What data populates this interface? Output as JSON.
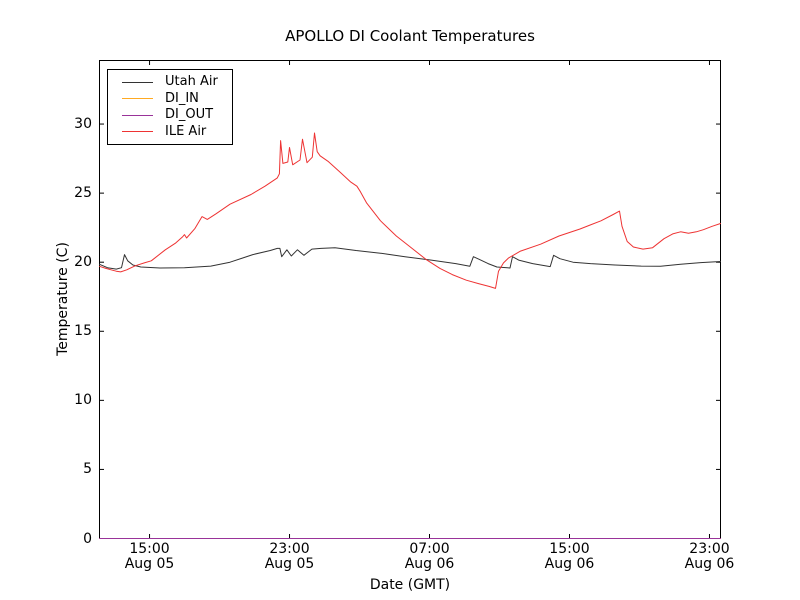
{
  "chart_data": {
    "type": "line",
    "title": "APOLLO DI Coolant Temperatures",
    "xlabel": "Date (GMT)",
    "ylabel": "Temperature (C)",
    "grid": false,
    "legend_position": "upper left",
    "frame_color": "#000000",
    "background_color": "#ffffff",
    "x_unit": "hours since Aug 05 00:00 GMT",
    "xlim": [
      12.14,
      47.63
    ],
    "ylim": [
      0,
      34.6
    ],
    "y_ticks": [
      0,
      5,
      10,
      15,
      20,
      25,
      30
    ],
    "x_ticks": [
      {
        "t": 15,
        "time": "15:00",
        "date": "Aug 05"
      },
      {
        "t": 23,
        "time": "23:00",
        "date": "Aug 05"
      },
      {
        "t": 31,
        "time": "07:00",
        "date": "Aug 06"
      },
      {
        "t": 39,
        "time": "15:00",
        "date": "Aug 06"
      },
      {
        "t": 47,
        "time": "23:00",
        "date": "Aug 06"
      }
    ],
    "series": [
      {
        "name": "Utah Air",
        "color": "#333333",
        "points": [
          [
            12.14,
            19.85
          ],
          [
            12.6,
            19.6
          ],
          [
            13.1,
            19.5
          ],
          [
            13.4,
            19.6
          ],
          [
            13.57,
            20.55
          ],
          [
            13.75,
            20.1
          ],
          [
            14.05,
            19.8
          ],
          [
            14.5,
            19.65
          ],
          [
            15.6,
            19.58
          ],
          [
            17.0,
            19.6
          ],
          [
            18.5,
            19.72
          ],
          [
            19.6,
            20.0
          ],
          [
            20.3,
            20.3
          ],
          [
            20.9,
            20.55
          ],
          [
            21.9,
            20.85
          ],
          [
            22.3,
            21.0
          ],
          [
            22.45,
            21.0
          ],
          [
            22.55,
            20.4
          ],
          [
            22.85,
            20.9
          ],
          [
            23.1,
            20.45
          ],
          [
            23.45,
            20.9
          ],
          [
            23.82,
            20.5
          ],
          [
            24.28,
            20.95
          ],
          [
            24.8,
            21.0
          ],
          [
            25.6,
            21.05
          ],
          [
            26.8,
            20.85
          ],
          [
            28.2,
            20.65
          ],
          [
            29.6,
            20.4
          ],
          [
            31.1,
            20.15
          ],
          [
            32.5,
            19.9
          ],
          [
            33.3,
            19.7
          ],
          [
            33.51,
            20.4
          ],
          [
            33.85,
            20.2
          ],
          [
            34.35,
            19.9
          ],
          [
            34.85,
            19.65
          ],
          [
            35.6,
            19.58
          ],
          [
            35.74,
            20.4
          ],
          [
            36.1,
            20.15
          ],
          [
            36.9,
            19.9
          ],
          [
            37.9,
            19.68
          ],
          [
            38.09,
            20.5
          ],
          [
            38.45,
            20.25
          ],
          [
            39.2,
            20.0
          ],
          [
            40.2,
            19.9
          ],
          [
            41.6,
            19.8
          ],
          [
            43.1,
            19.72
          ],
          [
            44.2,
            19.7
          ],
          [
            45.35,
            19.85
          ],
          [
            46.5,
            19.97
          ],
          [
            47.63,
            20.05
          ]
        ]
      },
      {
        "name": "DI_IN",
        "color": "#ffaa22",
        "points": [
          [
            12.14,
            0
          ],
          [
            47.63,
            0
          ]
        ]
      },
      {
        "name": "DI_OUT",
        "color": "#993399",
        "points": [
          [
            12.14,
            0
          ],
          [
            47.63,
            0
          ]
        ]
      },
      {
        "name": "ILE Air",
        "color": "#ee3333",
        "points": [
          [
            12.14,
            19.7
          ],
          [
            12.5,
            19.55
          ],
          [
            12.8,
            19.45
          ],
          [
            13.1,
            19.35
          ],
          [
            13.35,
            19.3
          ],
          [
            13.7,
            19.45
          ],
          [
            14.2,
            19.75
          ],
          [
            14.7,
            19.95
          ],
          [
            15.1,
            20.1
          ],
          [
            15.9,
            20.9
          ],
          [
            16.5,
            21.4
          ],
          [
            16.9,
            21.85
          ],
          [
            17.0,
            22.0
          ],
          [
            17.12,
            21.75
          ],
          [
            17.6,
            22.45
          ],
          [
            18.0,
            23.3
          ],
          [
            18.3,
            23.1
          ],
          [
            18.8,
            23.5
          ],
          [
            19.6,
            24.2
          ],
          [
            20.8,
            24.9
          ],
          [
            21.6,
            25.5
          ],
          [
            22.3,
            26.1
          ],
          [
            22.42,
            26.4
          ],
          [
            22.49,
            28.8
          ],
          [
            22.62,
            27.15
          ],
          [
            22.9,
            27.25
          ],
          [
            23.0,
            28.3
          ],
          [
            23.18,
            27.05
          ],
          [
            23.6,
            27.4
          ],
          [
            23.74,
            28.9
          ],
          [
            24.0,
            27.2
          ],
          [
            24.3,
            27.6
          ],
          [
            24.43,
            29.35
          ],
          [
            24.58,
            28.0
          ],
          [
            24.75,
            27.7
          ],
          [
            25.2,
            27.3
          ],
          [
            25.9,
            26.5
          ],
          [
            26.5,
            25.8
          ],
          [
            26.85,
            25.5
          ],
          [
            27.05,
            25.1
          ],
          [
            27.4,
            24.3
          ],
          [
            28.2,
            23.0
          ],
          [
            29.1,
            21.9
          ],
          [
            29.9,
            21.1
          ],
          [
            30.8,
            20.2
          ],
          [
            31.6,
            19.55
          ],
          [
            32.3,
            19.1
          ],
          [
            33.1,
            18.7
          ],
          [
            33.8,
            18.45
          ],
          [
            34.4,
            18.25
          ],
          [
            34.77,
            18.1
          ],
          [
            34.94,
            19.35
          ],
          [
            35.23,
            19.95
          ],
          [
            35.51,
            20.3
          ],
          [
            36.2,
            20.8
          ],
          [
            37.35,
            21.3
          ],
          [
            38.4,
            21.9
          ],
          [
            39.6,
            22.4
          ],
          [
            40.2,
            22.7
          ],
          [
            40.8,
            23.0
          ],
          [
            41.5,
            23.45
          ],
          [
            41.86,
            23.7
          ],
          [
            42.0,
            22.6
          ],
          [
            42.3,
            21.5
          ],
          [
            42.65,
            21.1
          ],
          [
            43.2,
            20.95
          ],
          [
            43.75,
            21.05
          ],
          [
            44.4,
            21.7
          ],
          [
            44.9,
            22.05
          ],
          [
            45.35,
            22.2
          ],
          [
            45.8,
            22.1
          ],
          [
            46.25,
            22.2
          ],
          [
            46.65,
            22.35
          ],
          [
            47.15,
            22.6
          ],
          [
            47.63,
            22.8
          ]
        ]
      }
    ]
  }
}
